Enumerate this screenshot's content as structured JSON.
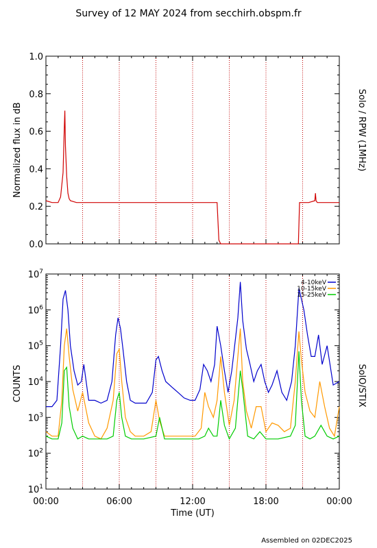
{
  "page": {
    "title": "Survey of 12 MAY 2024 from secchirh.obspm.fr",
    "footer": "Assembled on 02DEC2025"
  },
  "chart_data": [
    {
      "type": "line",
      "instrument_label": "Solo / RPW (1MHz)",
      "ylabel": "Normalized flux in dB",
      "xlim_hours": [
        0,
        24
      ],
      "ylim": [
        0,
        1.0
      ],
      "y_ticks": [
        "0.0",
        "0.2",
        "0.4",
        "0.6",
        "0.8",
        "1.0"
      ],
      "y_tick_values": [
        0,
        0.2,
        0.4,
        0.6,
        0.8,
        1.0
      ],
      "vertical_dotted_lines_hours": [
        3,
        6,
        9,
        12,
        15,
        18,
        21
      ],
      "series": [
        {
          "color": "#d00000",
          "x_hours": [
            0,
            0.5,
            1.0,
            1.2,
            1.4,
            1.5,
            1.55,
            1.6,
            1.7,
            1.8,
            1.9,
            2.0,
            2.5,
            3,
            4,
            5,
            6,
            7,
            8,
            9,
            10,
            11,
            12,
            13,
            14,
            14.15,
            14.3,
            15,
            16,
            17,
            18,
            19,
            20,
            20.65,
            20.75,
            21,
            21.5,
            22.0,
            22.05,
            22.1,
            22.2,
            23,
            24
          ],
          "values": [
            0.23,
            0.22,
            0.22,
            0.25,
            0.38,
            0.62,
            0.71,
            0.52,
            0.36,
            0.27,
            0.24,
            0.23,
            0.22,
            0.22,
            0.22,
            0.22,
            0.22,
            0.22,
            0.22,
            0.22,
            0.22,
            0.22,
            0.22,
            0.22,
            0.22,
            0.02,
            0.0,
            0.0,
            0.0,
            0.0,
            0.0,
            0.0,
            0.0,
            0.0,
            0.22,
            0.22,
            0.22,
            0.23,
            0.27,
            0.23,
            0.22,
            0.22,
            0.22
          ]
        }
      ]
    },
    {
      "type": "line",
      "instrument_label": "SolO/STIX",
      "ylabel": "COUNTS",
      "xlabel": "Time (UT)",
      "xlim_hours": [
        0,
        24
      ],
      "x_ticks": [
        "00:00",
        "06:00",
        "12:00",
        "18:00",
        "00:00"
      ],
      "x_tick_hours": [
        0,
        6,
        12,
        18,
        24
      ],
      "y_scale": "log",
      "ylim": [
        10,
        10000000
      ],
      "y_tick_exponents": [
        "1",
        "2",
        "3",
        "4",
        "5",
        "6",
        "7"
      ],
      "vertical_dotted_lines_hours": [
        3,
        6,
        9,
        12,
        15,
        18,
        21
      ],
      "legend_position": "top-right",
      "series": [
        {
          "name": "4-10keV",
          "color": "#0000cc",
          "x_hours": [
            0,
            0.5,
            0.9,
            1.2,
            1.4,
            1.6,
            1.8,
            2.0,
            2.3,
            2.6,
            2.9,
            3.1,
            3.5,
            4.0,
            4.5,
            5.0,
            5.4,
            5.7,
            5.9,
            6.1,
            6.3,
            6.6,
            6.9,
            7.3,
            7.7,
            8.2,
            8.7,
            9.0,
            9.2,
            9.5,
            9.8,
            10.3,
            10.8,
            11.3,
            11.8,
            12.2,
            12.6,
            12.9,
            13.2,
            13.5,
            13.8,
            14.0,
            14.3,
            14.6,
            14.9,
            15.2,
            15.5,
            15.7,
            15.9,
            16.1,
            16.4,
            16.7,
            17.0,
            17.3,
            17.6,
            17.9,
            18.2,
            18.5,
            18.9,
            19.3,
            19.7,
            20.1,
            20.4,
            20.7,
            20.9,
            21.1,
            21.4,
            21.7,
            22.0,
            22.3,
            22.6,
            23.0,
            23.5,
            24
          ],
          "values": [
            2000,
            2000,
            3000,
            100000,
            2000000,
            3500000,
            1000000,
            100000,
            20000,
            8000,
            10000,
            30000,
            3000,
            3000,
            2500,
            3000,
            10000,
            200000,
            600000,
            300000,
            80000,
            10000,
            3000,
            2500,
            2500,
            2500,
            5000,
            40000,
            50000,
            20000,
            10000,
            7000,
            5000,
            3500,
            3000,
            3000,
            6000,
            30000,
            20000,
            10000,
            30000,
            350000,
            100000,
            20000,
            5000,
            20000,
            150000,
            600000,
            6000000,
            500000,
            80000,
            30000,
            10000,
            20000,
            30000,
            10000,
            5000,
            8000,
            20000,
            5000,
            3000,
            10000,
            100000,
            4000000,
            2000000,
            1000000,
            200000,
            50000,
            50000,
            200000,
            30000,
            100000,
            8000,
            10000
          ]
        },
        {
          "name": "10-15keV",
          "color": "#ff9900",
          "x_hours": [
            0,
            0.5,
            1.0,
            1.3,
            1.5,
            1.7,
            1.9,
            2.2,
            2.6,
            3.0,
            3.5,
            4.0,
            4.5,
            5.0,
            5.5,
            5.8,
            6.0,
            6.2,
            6.5,
            6.9,
            7.3,
            8.0,
            8.6,
            9.0,
            9.3,
            9.7,
            10.3,
            11.0,
            11.7,
            12.2,
            12.7,
            13.0,
            13.3,
            13.7,
            14.0,
            14.3,
            14.6,
            15.0,
            15.4,
            15.7,
            15.9,
            16.1,
            16.4,
            16.8,
            17.2,
            17.6,
            18.0,
            18.5,
            19.0,
            19.5,
            20.0,
            20.4,
            20.7,
            20.9,
            21.2,
            21.6,
            22.0,
            22.4,
            22.8,
            23.2,
            23.6,
            24
          ],
          "values": [
            400,
            300,
            300,
            3000,
            100000,
            300000,
            50000,
            6000,
            1500,
            5000,
            700,
            300,
            250,
            500,
            3000,
            60000,
            80000,
            10000,
            1000,
            400,
            300,
            300,
            400,
            3000,
            800,
            300,
            300,
            300,
            300,
            300,
            500,
            5000,
            2000,
            1000,
            3000,
            50000,
            5000,
            600,
            3000,
            50000,
            300000,
            10000,
            1500,
            500,
            2000,
            2000,
            400,
            700,
            600,
            400,
            500,
            10000,
            250000,
            40000,
            5000,
            1500,
            1000,
            10000,
            2000,
            500,
            300,
            2000
          ]
        },
        {
          "name": "15-25keV",
          "color": "#00cc00",
          "x_hours": [
            0,
            0.5,
            1.0,
            1.3,
            1.5,
            1.7,
            1.9,
            2.2,
            2.6,
            3.0,
            3.5,
            4.0,
            4.5,
            5.0,
            5.5,
            5.8,
            6.0,
            6.2,
            6.5,
            7.0,
            8.0,
            9.0,
            9.3,
            9.7,
            10.5,
            11.5,
            12.5,
            13.0,
            13.3,
            13.7,
            14.0,
            14.3,
            14.6,
            15.0,
            15.5,
            15.9,
            16.1,
            16.5,
            17.0,
            17.5,
            18.0,
            19.0,
            20.0,
            20.4,
            20.7,
            20.9,
            21.2,
            21.6,
            22.0,
            22.5,
            23.0,
            23.5,
            24
          ],
          "values": [
            300,
            250,
            250,
            700,
            20000,
            25000,
            2000,
            500,
            250,
            300,
            250,
            250,
            250,
            250,
            300,
            3000,
            5000,
            1000,
            300,
            250,
            250,
            300,
            1000,
            250,
            250,
            250,
            250,
            300,
            500,
            300,
            300,
            3000,
            600,
            250,
            500,
            20000,
            6000,
            300,
            250,
            400,
            250,
            250,
            300,
            600,
            70000,
            3000,
            300,
            250,
            300,
            600,
            300,
            250,
            300
          ]
        }
      ]
    }
  ]
}
